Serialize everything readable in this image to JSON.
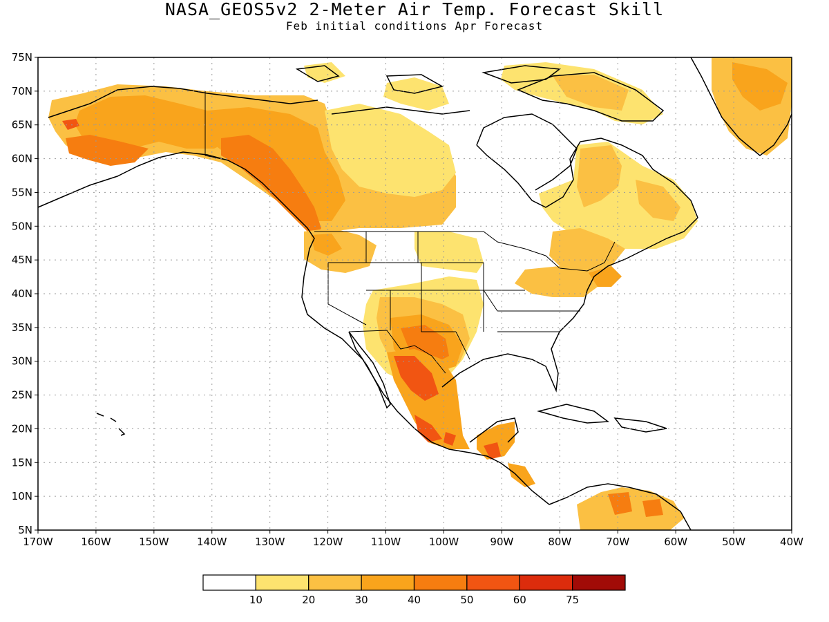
{
  "title": "NASA_GEOS5v2 2-Meter Air Temp. Forecast Skill",
  "subtitle": "Feb initial conditions  Apr Forecast",
  "axes": {
    "lon_range": [
      -170,
      -40
    ],
    "lat_range": [
      5,
      75
    ],
    "lon_ticks": [
      "170W",
      "160W",
      "150W",
      "140W",
      "130W",
      "120W",
      "110W",
      "100W",
      "90W",
      "80W",
      "70W",
      "60W",
      "50W",
      "40W"
    ],
    "lat_ticks": [
      "75N",
      "70N",
      "65N",
      "60N",
      "55N",
      "50N",
      "45N",
      "40N",
      "35N",
      "30N",
      "25N",
      "20N",
      "15N",
      "10N",
      "5N"
    ],
    "grid": true
  },
  "colorbar": {
    "labels": [
      "10",
      "20",
      "30",
      "40",
      "50",
      "60",
      "75"
    ],
    "colors": [
      "#ffffff",
      "#fde36f",
      "#fbc043",
      "#f9a41c",
      "#f67d10",
      "#f15512",
      "#dc2c0c",
      "#a10b07"
    ]
  },
  "map_colors": {
    "skill_10_20": "#fde36f",
    "skill_20_30": "#fbc043",
    "skill_30_40": "#f9a41c",
    "skill_40_50": "#f67d10",
    "skill_50_60": "#f15512",
    "skill_60_75": "#dc2c0c",
    "coastline": "#000000",
    "grid": "#9a9a9a"
  }
}
